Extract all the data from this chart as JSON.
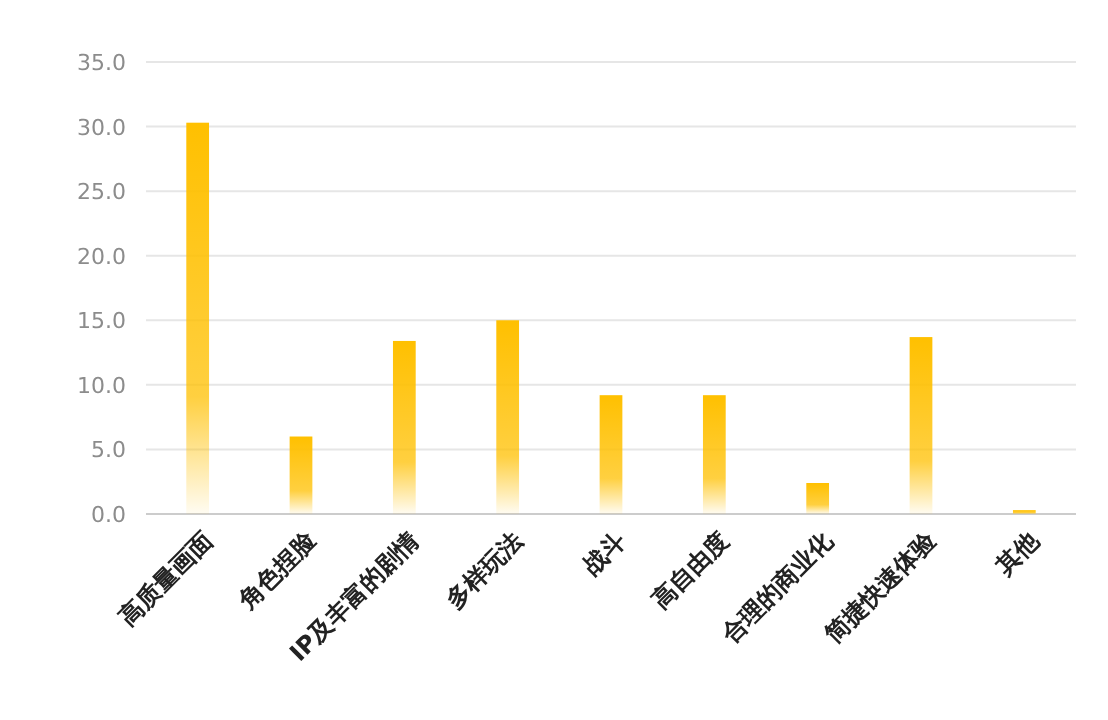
{
  "chart_data": {
    "type": "bar",
    "categories": [
      "高质量画面",
      "角色捏脸",
      "IP及丰富的剧情",
      "多样玩法",
      "战斗",
      "高自由度",
      "合理的商业化",
      "简捷快速体验",
      "其他"
    ],
    "values": [
      30.3,
      6.0,
      13.4,
      15.0,
      9.2,
      9.2,
      2.4,
      13.7,
      0.3
    ],
    "color": "#ffc000",
    "ylim": [
      0,
      35
    ],
    "yticks": [
      {
        "value": 0,
        "label": "0.0"
      },
      {
        "value": 5,
        "label": "5.0"
      },
      {
        "value": 10,
        "label": "10.0"
      },
      {
        "value": 15,
        "label": "15.0"
      },
      {
        "value": 20,
        "label": "20.0"
      },
      {
        "value": 25,
        "label": "25.0"
      },
      {
        "value": 30,
        "label": "30.0"
      },
      {
        "value": 35,
        "label": "35.0"
      }
    ],
    "grid": "y"
  }
}
